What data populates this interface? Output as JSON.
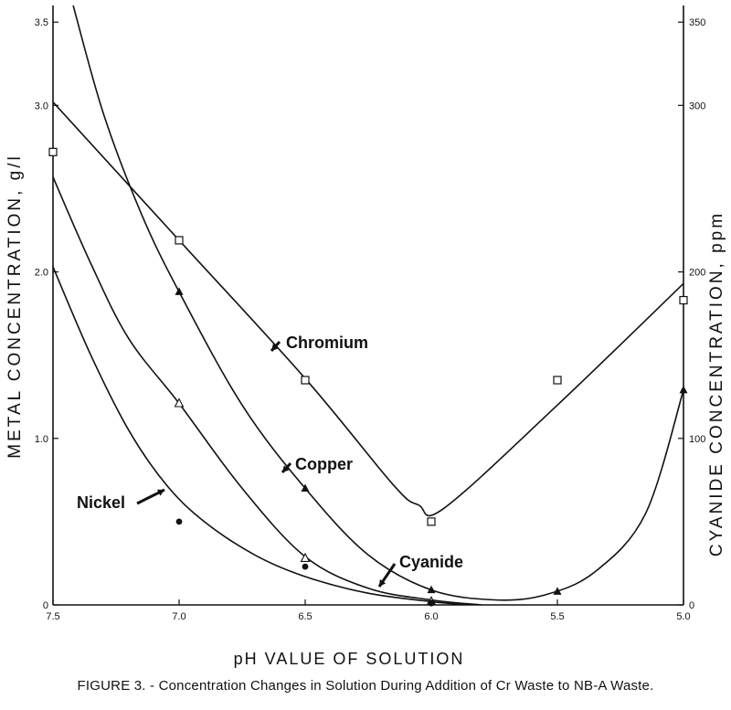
{
  "chart_data": {
    "type": "line",
    "title": "",
    "caption": "FIGURE 3. - Concentration Changes in Solution During Addition of Cr Waste to NB-A Waste.",
    "xlabel": "pH VALUE OF SOLUTION",
    "ylabel_left": "METAL CONCENTRATION, g/l",
    "ylabel_right": "CYANIDE CONCENTRATION, ppm",
    "x_reversed": true,
    "xlim": [
      7.5,
      5.0
    ],
    "ylim_left": [
      0,
      3.6
    ],
    "ylim_right": [
      0,
      360
    ],
    "x_ticks": [
      7.5,
      7.0,
      6.5,
      6.0,
      5.5,
      5.0
    ],
    "x_tick_labels": [
      "7.5",
      "7.0",
      "6.5",
      "6.0",
      "5.5",
      "5.0"
    ],
    "y_left_ticks": [
      0,
      1.0,
      2.0,
      3.0,
      3.5
    ],
    "y_left_tick_labels": [
      "0",
      "1.0",
      "2.0",
      "3.0",
      "3.5"
    ],
    "y_right_ticks": [
      0,
      100,
      200,
      300,
      350
    ],
    "y_right_tick_labels": [
      "0",
      "100",
      "200",
      "300",
      "350"
    ],
    "grid": false,
    "series": [
      {
        "name": "Chromium",
        "axis": "left",
        "marker": "open-square",
        "points": [
          [
            7.5,
            2.72
          ],
          [
            7.0,
            2.19
          ],
          [
            6.5,
            1.35
          ],
          [
            6.0,
            0.5
          ],
          [
            5.5,
            1.35
          ],
          [
            5.0,
            1.83
          ]
        ],
        "curve": [
          [
            7.5,
            3.02
          ],
          [
            7.0,
            2.19
          ],
          [
            6.5,
            1.36
          ],
          [
            6.15,
            0.72
          ],
          [
            6.05,
            0.6
          ],
          [
            5.95,
            0.58
          ],
          [
            5.5,
            1.2
          ],
          [
            5.0,
            1.93
          ]
        ]
      },
      {
        "name": "Copper",
        "axis": "left",
        "marker": "filled-triangle",
        "points": [
          [
            7.0,
            1.88
          ],
          [
            6.5,
            0.7
          ],
          [
            6.0,
            0.09
          ],
          [
            5.5,
            0.08
          ],
          [
            5.0,
            1.29
          ]
        ],
        "curve": [
          [
            7.42,
            3.6
          ],
          [
            7.3,
            2.95
          ],
          [
            7.15,
            2.35
          ],
          [
            7.0,
            1.88
          ],
          [
            6.75,
            1.2
          ],
          [
            6.5,
            0.7
          ],
          [
            6.25,
            0.3
          ],
          [
            6.0,
            0.09
          ],
          [
            5.75,
            0.03
          ],
          [
            5.55,
            0.06
          ],
          [
            5.35,
            0.2
          ],
          [
            5.15,
            0.55
          ],
          [
            5.0,
            1.29
          ]
        ]
      },
      {
        "name": "Cyanide",
        "axis": "right",
        "marker": "open-triangle",
        "points": [
          [
            7.0,
            121
          ],
          [
            6.5,
            28
          ],
          [
            6.0,
            2
          ]
        ],
        "curve": [
          [
            7.5,
            257
          ],
          [
            7.35,
            205
          ],
          [
            7.2,
            160
          ],
          [
            7.0,
            121
          ],
          [
            6.75,
            70
          ],
          [
            6.5,
            29
          ],
          [
            6.25,
            10
          ],
          [
            6.0,
            3
          ],
          [
            5.8,
            0
          ]
        ]
      },
      {
        "name": "Nickel",
        "axis": "left",
        "marker": "filled-circle",
        "points": [
          [
            7.0,
            0.5
          ],
          [
            6.5,
            0.23
          ],
          [
            6.0,
            0.01
          ]
        ],
        "curve": [
          [
            7.5,
            2.03
          ],
          [
            7.35,
            1.5
          ],
          [
            7.2,
            1.05
          ],
          [
            7.05,
            0.72
          ],
          [
            6.9,
            0.5
          ],
          [
            6.7,
            0.3
          ],
          [
            6.5,
            0.17
          ],
          [
            6.25,
            0.07
          ],
          [
            6.0,
            0.02
          ],
          [
            5.85,
            0.0
          ]
        ]
      }
    ],
    "annotations": [
      {
        "text": "Chromium",
        "target": "Chromium"
      },
      {
        "text": "Copper",
        "target": "Copper"
      },
      {
        "text": "Cyanide",
        "target": "Cyanide"
      },
      {
        "text": "Nickel",
        "target": "Nickel"
      }
    ]
  }
}
